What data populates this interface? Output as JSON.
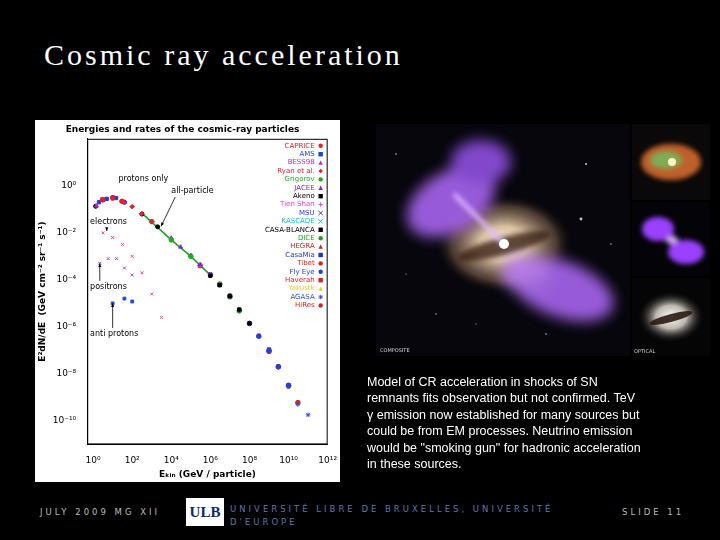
{
  "slide": {
    "title": "Cosmic ray acceleration",
    "paragraph": [
      "Model of CR acceleration in shocks of SN",
      "remnants fits observation but not confirmed.  TeV",
      "γ emission now established for many sources but",
      "could be from EM processes.  Neutrino emission",
      "would be \"smoking gun\" for hadronic acceleration",
      "in these sources."
    ],
    "image_labels": [
      "COMPOSITE",
      "OPTICAL"
    ],
    "footer": {
      "left": "JULY 2009 MG XII",
      "logo": "ULB",
      "center": [
        "UNIVERSITÉ LIBRE DE BRUXELLES, UNIVERSITÉ",
        "D'EUROPE"
      ],
      "right": "SLIDE 11"
    }
  },
  "chart_data": {
    "type": "scatter",
    "title": "Energies and rates of the cosmic-ray particles",
    "x_label": "Eₖᵢₙ (GeV / particle)",
    "y_label": "E²dN/dE  (GeV cm⁻² sr⁻¹ s⁻¹)",
    "log": true,
    "grid": false,
    "legend": "top-right",
    "xlim": [
      0.5,
      1000000000000.0
    ],
    "xticks": [
      {
        "value": 1,
        "label": "10⁰"
      },
      {
        "value": 100,
        "label": "10²"
      },
      {
        "value": 10000.0,
        "label": "10⁴"
      },
      {
        "value": 1000000.0,
        "label": "10⁶"
      },
      {
        "value": 100000000.0,
        "label": "10⁸"
      },
      {
        "value": 10000000000.0,
        "label": "10¹⁰"
      },
      {
        "value": 1000000000000.0,
        "label": "10¹²"
      }
    ],
    "ylim": [
      1e-11,
      100
    ],
    "yticks": [
      {
        "value": 1,
        "label": "10⁰"
      },
      {
        "value": 0.01,
        "label": "10⁻²"
      },
      {
        "value": 0.0001,
        "label": "10⁻⁴"
      },
      {
        "value": 1e-06,
        "label": "10⁻⁶"
      },
      {
        "value": 1e-08,
        "label": "10⁻⁸"
      },
      {
        "value": 1e-10,
        "label": "10⁻¹⁰"
      }
    ],
    "series": [
      {
        "name": "CAPRICE",
        "color": "#e8202a",
        "marker": "circle",
        "x": [
          3,
          10,
          30
        ],
        "values": [
          0.26,
          0.3,
          0.22
        ]
      },
      {
        "name": "AMS",
        "color": "#1a3fd6",
        "marker": "rect",
        "x": [
          2,
          5,
          15
        ],
        "values": [
          0.2,
          0.28,
          0.3
        ]
      },
      {
        "name": "BESS98",
        "color": "#d21fd2",
        "marker": "triangle",
        "x": [
          1.5,
          4,
          12,
          40
        ],
        "values": [
          0.14,
          0.26,
          0.31,
          0.2
        ]
      },
      {
        "name": "Ryan et al.",
        "color": "#e0203a",
        "marker": "rectRot",
        "x": [
          30,
          100,
          300,
          1000
        ],
        "values": [
          0.22,
          0.13,
          0.065,
          0.03
        ]
      },
      {
        "name": "Grigorov",
        "color": "#22aa22",
        "marker": "circle",
        "x": [
          1000,
          10000.0,
          100000.0
        ],
        "values": [
          0.03,
          0.005,
          0.001
        ]
      },
      {
        "name": "JACEE",
        "color": "#7a2bd0",
        "marker": "triangle",
        "x": [
          10000.0,
          30000.0,
          100000.0,
          300000.0
        ],
        "values": [
          0.006,
          0.0025,
          0.0011,
          0.00045
        ]
      },
      {
        "name": "Akeno",
        "color": "#000000",
        "marker": "rect",
        "x": [
          1000000.0,
          3000000.0,
          10000000.0,
          30000000.0,
          100000000.0
        ],
        "values": [
          0.00015,
          6e-05,
          2e-05,
          5.5e-06,
          1.4e-06
        ]
      },
      {
        "name": "Tien Shan",
        "color": "#e040e0",
        "marker": "cross",
        "x": [
          300000.0,
          1000000.0,
          3000000.0
        ],
        "values": [
          0.0004,
          0.00017,
          6.5e-05
        ]
      },
      {
        "name": "MSU",
        "color": "#2040d0",
        "marker": "crossRot",
        "x": [
          1000000.0,
          3000000.0,
          10000000.0
        ],
        "values": [
          0.00016,
          6e-05,
          1.9e-05
        ]
      },
      {
        "name": "KASCADE",
        "color": "#20b8d8",
        "marker": "crossRot",
        "x": [
          300000.0,
          1000000.0,
          3000000.0,
          10000000.0,
          30000000.0
        ],
        "values": [
          0.00042,
          0.00016,
          6.2e-05,
          2e-05,
          5e-06
        ]
      },
      {
        "name": "CASA-BLANCA",
        "color": "#000000",
        "marker": "rect",
        "x": [
          3000000.0,
          10000000.0,
          30000000.0
        ],
        "values": [
          6e-05,
          2.1e-05,
          5.2e-06
        ]
      },
      {
        "name": "DICE",
        "color": "#20a020",
        "marker": "circle",
        "x": [
          3000000.0,
          10000000.0,
          30000000.0
        ],
        "values": [
          6.6e-05,
          1.9e-05,
          4.8e-06
        ]
      },
      {
        "name": "HEGRA",
        "color": "#d02020",
        "marker": "triangle",
        "x": [
          300000.0,
          1000000.0,
          3000000.0
        ],
        "values": [
          0.00038,
          0.00015,
          6e-05
        ]
      },
      {
        "name": "CasaMia",
        "color": "#2030c0",
        "marker": "rect",
        "x": [
          1000000.0,
          3000000.0,
          10000000.0
        ],
        "values": [
          0.00017,
          6.4e-05,
          2.1e-05
        ]
      },
      {
        "name": "Tibet",
        "color": "#e02020",
        "marker": "circle",
        "x": [
          300000.0,
          1000000.0,
          3000000.0,
          10000000.0
        ],
        "values": [
          0.0004,
          0.00016,
          6.3e-05,
          2e-05
        ]
      },
      {
        "name": "Fly Eye",
        "color": "#2040e0",
        "marker": "circle",
        "x": [
          100000000.0,
          300000000.0,
          1000000000.0,
          3000000000.0,
          10000000000.0
        ],
        "values": [
          1.4e-06,
          4e-07,
          1e-07,
          2e-08,
          3.2e-09
        ]
      },
      {
        "name": "Haverah",
        "color": "#e02020",
        "marker": "rect",
        "x": [
          300000000.0,
          1000000000.0,
          3000000000.0,
          10000000000.0
        ],
        "values": [
          4.2e-07,
          1.1e-07,
          2.1e-08,
          3.4e-09
        ]
      },
      {
        "name": "Yakustk",
        "color": "#e8d020",
        "marker": "triangle",
        "x": [
          100000000.0,
          300000000.0,
          1000000000.0,
          3000000000.0,
          10000000000.0
        ],
        "values": [
          1.5e-06,
          3.8e-07,
          1.1e-07,
          1.9e-08,
          3e-09
        ]
      },
      {
        "name": "AGASA",
        "color": "#3050e0",
        "marker": "star",
        "x": [
          1000000000.0,
          3000000000.0,
          10000000000.0,
          30000000000.0,
          100000000000.0
        ],
        "values": [
          1e-07,
          2e-08,
          3.2e-09,
          5e-10,
          1.8e-10
        ]
      },
      {
        "name": "HiRes",
        "color": "#d02020",
        "marker": "circle",
        "x": [
          1000000000.0,
          3000000000.0,
          10000000000.0,
          30000000000.0
        ],
        "values": [
          9e-08,
          2e-08,
          3e-09,
          6e-10
        ]
      }
    ],
    "curves": [
      {
        "label": "protons only",
        "color": "#000000",
        "marker": "circle",
        "line_style": "none",
        "x": [
          1.35,
          3.2,
          10,
          40,
          316,
          2000
        ],
        "values": [
          0.135,
          0.25,
          0.316,
          0.2,
          0.063,
          0.018
        ],
        "label_at": [
          20,
          2
        ]
      },
      {
        "label": "all-particle",
        "color": "#2a9d2a",
        "marker": "none",
        "line_style": "solid",
        "x": [
          300,
          10000.0,
          100000.0,
          1000000.0
        ],
        "values": [
          0.07,
          0.005,
          0.001,
          0.00016
        ],
        "label_at": [
          10000.0,
          0.6
        ],
        "arrow_to": [
          3000,
          0.019
        ]
      },
      {
        "label": "electrons",
        "color": "#e8409a",
        "marker": "crossRot",
        "line_style": "none",
        "x": [
          3.2,
          10,
          32,
          100,
          316,
          1000,
          3162
        ],
        "values": [
          0.01,
          0.0063,
          0.0032,
          0.001,
          0.0002,
          2.5e-05,
          2.5e-06
        ],
        "label_at": [
          0.7,
          0.03
        ],
        "arrow_to": [
          5,
          0.012
        ]
      },
      {
        "label": "positrons",
        "color": "#a040e0",
        "marker": "crossRot",
        "line_style": "none",
        "x": [
          2.2,
          5.9,
          16,
          40,
          100
        ],
        "values": [
          0.0005,
          0.0008,
          0.0008,
          0.00032,
          0.00016
        ],
        "label_at": [
          0.7,
          5e-05
        ],
        "arrow_to": [
          2.2,
          0.0005
        ]
      },
      {
        "label": "anti protons",
        "color": "#2050d0",
        "marker": "rect",
        "line_style": "none",
        "x": [
          10,
          40,
          100
        ],
        "values": [
          1e-05,
          1.6e-05,
          1.2e-05
        ],
        "label_at": [
          0.7,
          5e-07
        ],
        "arrow_to": [
          10,
          1e-05
        ]
      }
    ]
  }
}
